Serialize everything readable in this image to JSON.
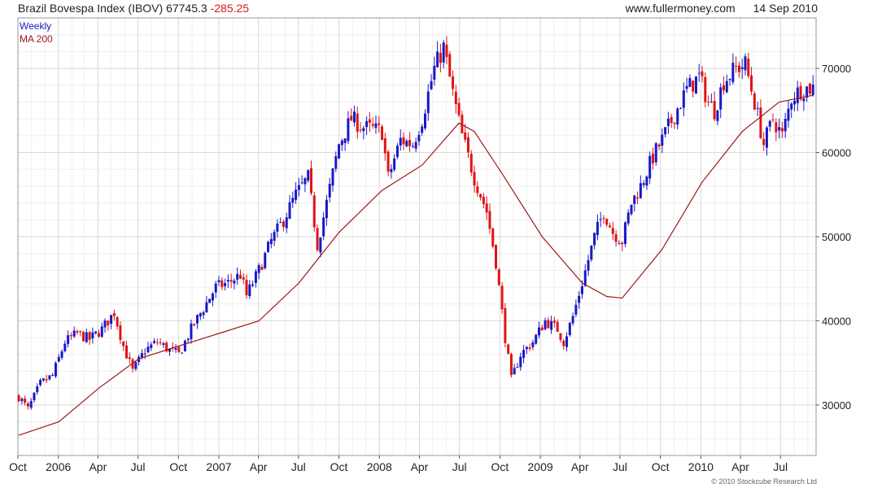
{
  "header": {
    "title": "Brazil Bovespa Index (IBOV)",
    "last": "67745.3",
    "change": "-285.25",
    "site": "www.fullermoney.com",
    "date": "14 Sep 2010"
  },
  "footer": {
    "copyright": "© 2010 Stockcube Research Ltd"
  },
  "colors": {
    "up": "#1818c8",
    "down": "#e01414",
    "ma": "#a01818",
    "grid": "#d9d9d9",
    "axis": "#555555"
  },
  "chart_data": {
    "type": "candlestick",
    "frequency": "weekly",
    "ylim": [
      24000,
      76000
    ],
    "y_ticks": [
      30000,
      40000,
      50000,
      60000,
      70000
    ],
    "grid": true,
    "x_ticks": [
      {
        "date": "2005-10-01",
        "label": "Oct"
      },
      {
        "date": "2006-01-01",
        "label": "2006"
      },
      {
        "date": "2006-04-01",
        "label": "Apr"
      },
      {
        "date": "2006-07-01",
        "label": "Jul"
      },
      {
        "date": "2006-10-01",
        "label": "Oct"
      },
      {
        "date": "2007-01-01",
        "label": "2007"
      },
      {
        "date": "2007-04-01",
        "label": "Apr"
      },
      {
        "date": "2007-07-01",
        "label": "Jul"
      },
      {
        "date": "2007-10-01",
        "label": "Oct"
      },
      {
        "date": "2008-01-01",
        "label": "2008"
      },
      {
        "date": "2008-04-01",
        "label": "Apr"
      },
      {
        "date": "2008-07-01",
        "label": "Jul"
      },
      {
        "date": "2008-10-01",
        "label": "Oct"
      },
      {
        "date": "2009-01-01",
        "label": "2009"
      },
      {
        "date": "2009-04-01",
        "label": "Apr"
      },
      {
        "date": "2009-07-01",
        "label": "Jul"
      },
      {
        "date": "2009-10-01",
        "label": "Oct"
      },
      {
        "date": "2010-01-01",
        "label": "2010"
      },
      {
        "date": "2010-04-01",
        "label": "Apr"
      },
      {
        "date": "2010-07-01",
        "label": "Jul"
      }
    ],
    "x_range": [
      "2005-10-01",
      "2010-09-20"
    ],
    "legend": [
      "Weekly",
      "MA 200"
    ],
    "legend_position": "top-left",
    "price_path": [
      [
        "2005-10-03",
        31000
      ],
      [
        "2005-10-24",
        29500
      ],
      [
        "2005-11-21",
        32500
      ],
      [
        "2005-12-19",
        33500
      ],
      [
        "2006-01-16",
        37500
      ],
      [
        "2006-02-13",
        38500
      ],
      [
        "2006-03-13",
        37800
      ],
      [
        "2006-04-10",
        39000
      ],
      [
        "2006-05-08",
        41000
      ],
      [
        "2006-05-29",
        37000
      ],
      [
        "2006-06-19",
        34000
      ],
      [
        "2006-07-17",
        36500
      ],
      [
        "2006-08-14",
        37500
      ],
      [
        "2006-09-11",
        36500
      ],
      [
        "2006-10-02",
        36000
      ],
      [
        "2006-10-30",
        39000
      ],
      [
        "2006-11-27",
        41500
      ],
      [
        "2006-12-25",
        44000
      ],
      [
        "2007-01-22",
        44500
      ],
      [
        "2007-02-19",
        45500
      ],
      [
        "2007-03-05",
        43000
      ],
      [
        "2007-04-02",
        46000
      ],
      [
        "2007-04-30",
        49500
      ],
      [
        "2007-05-28",
        52000
      ],
      [
        "2007-06-25",
        55000
      ],
      [
        "2007-07-23",
        57000
      ],
      [
        "2007-08-13",
        49000
      ],
      [
        "2007-09-03",
        54000
      ],
      [
        "2007-10-01",
        61000
      ],
      [
        "2007-10-29",
        64000
      ],
      [
        "2007-11-26",
        63000
      ],
      [
        "2008-01-07",
        62500
      ],
      [
        "2008-01-21",
        57000
      ],
      [
        "2008-02-18",
        61500
      ],
      [
        "2008-03-17",
        61000
      ],
      [
        "2008-04-07",
        64000
      ],
      [
        "2008-05-05",
        70000
      ],
      [
        "2008-05-26",
        72500
      ],
      [
        "2008-06-16",
        67000
      ],
      [
        "2008-07-07",
        62000
      ],
      [
        "2008-08-04",
        57000
      ],
      [
        "2008-09-01",
        53000
      ],
      [
        "2008-09-22",
        47000
      ],
      [
        "2008-10-13",
        38000
      ],
      [
        "2008-10-27",
        33000
      ],
      [
        "2008-11-17",
        36000
      ],
      [
        "2008-12-15",
        37500
      ],
      [
        "2009-01-12",
        40000
      ],
      [
        "2009-02-09",
        39000
      ],
      [
        "2009-02-23",
        37500
      ],
      [
        "2009-03-16",
        40500
      ],
      [
        "2009-04-06",
        44500
      ],
      [
        "2009-05-04",
        50000
      ],
      [
        "2009-05-25",
        53000
      ],
      [
        "2009-06-15",
        50500
      ],
      [
        "2009-07-06",
        49500
      ],
      [
        "2009-07-27",
        54000
      ],
      [
        "2009-08-17",
        56000
      ],
      [
        "2009-09-14",
        59500
      ],
      [
        "2009-10-05",
        61500
      ],
      [
        "2009-11-02",
        64500
      ],
      [
        "2009-11-30",
        67500
      ],
      [
        "2009-12-28",
        69000
      ],
      [
        "2010-01-18",
        66000
      ],
      [
        "2010-02-01",
        65000
      ],
      [
        "2010-02-22",
        68500
      ],
      [
        "2010-03-22",
        70000
      ],
      [
        "2010-04-12",
        70500
      ],
      [
        "2010-05-03",
        66000
      ],
      [
        "2010-05-24",
        61000
      ],
      [
        "2010-06-14",
        64000
      ],
      [
        "2010-07-05",
        62000
      ],
      [
        "2010-07-26",
        66500
      ],
      [
        "2010-08-16",
        67500
      ],
      [
        "2010-09-13",
        67745
      ]
    ],
    "ma200": [
      [
        "2005-10-03",
        26400
      ],
      [
        "2006-01-02",
        28000
      ],
      [
        "2006-04-03",
        32000
      ],
      [
        "2006-07-03",
        35500
      ],
      [
        "2006-10-02",
        37000
      ],
      [
        "2007-01-01",
        38500
      ],
      [
        "2007-04-02",
        40000
      ],
      [
        "2007-07-02",
        44500
      ],
      [
        "2007-10-01",
        50500
      ],
      [
        "2008-01-07",
        55500
      ],
      [
        "2008-04-07",
        58500
      ],
      [
        "2008-06-30",
        63500
      ],
      [
        "2008-08-04",
        62500
      ],
      [
        "2008-10-06",
        57500
      ],
      [
        "2009-01-05",
        50000
      ],
      [
        "2009-04-06",
        44500
      ],
      [
        "2009-06-01",
        42900
      ],
      [
        "2009-07-06",
        42700
      ],
      [
        "2009-10-05",
        48500
      ],
      [
        "2010-01-04",
        56500
      ],
      [
        "2010-04-05",
        62500
      ],
      [
        "2010-06-28",
        66000
      ],
      [
        "2010-09-13",
        66800
      ]
    ]
  }
}
